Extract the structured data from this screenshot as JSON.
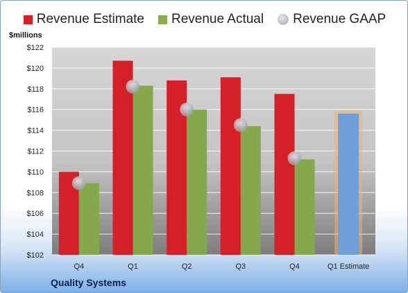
{
  "legend": [
    {
      "label": "Revenue Estimate",
      "color": "#d42027",
      "shape": "square"
    },
    {
      "label": "Revenue Actual",
      "color": "#8aac4e",
      "shape": "square"
    },
    {
      "label": "Revenue GAAP",
      "color": "#b8bcc8",
      "shape": "circle"
    }
  ],
  "unit_label": "$millions",
  "company": "Quality Systems",
  "colors": {
    "estimate": "#d42027",
    "actual": "#86a84c",
    "gaap": "#c0c4cc",
    "forecast": "#6f9fd8",
    "forecast_glow": "#f2b36a"
  },
  "chart_data": {
    "type": "bar",
    "categories": [
      "Q4",
      "Q1",
      "Q2",
      "Q3",
      "Q4",
      "Q1 Estimate"
    ],
    "ylim": [
      102,
      122
    ],
    "yticks": [
      102,
      104,
      106,
      108,
      110,
      112,
      114,
      116,
      118,
      120,
      122
    ],
    "ytick_labels": [
      "$102",
      "$104",
      "$106",
      "$108",
      "$110",
      "$112",
      "$114",
      "$116",
      "$118",
      "$120",
      "$122"
    ],
    "grid": true,
    "legend_position": "top",
    "series": [
      {
        "name": "Revenue Estimate",
        "values": [
          110.0,
          120.7,
          118.8,
          119.1,
          117.5,
          null
        ]
      },
      {
        "name": "Revenue Actual",
        "values": [
          108.9,
          118.3,
          116.0,
          114.4,
          111.2,
          null
        ]
      },
      {
        "name": "Revenue GAAP",
        "type": "scatter",
        "values": [
          108.9,
          118.2,
          116.0,
          114.5,
          111.3,
          null
        ]
      }
    ],
    "forecast": {
      "category": "Q1 Estimate",
      "value": 115.6
    }
  }
}
